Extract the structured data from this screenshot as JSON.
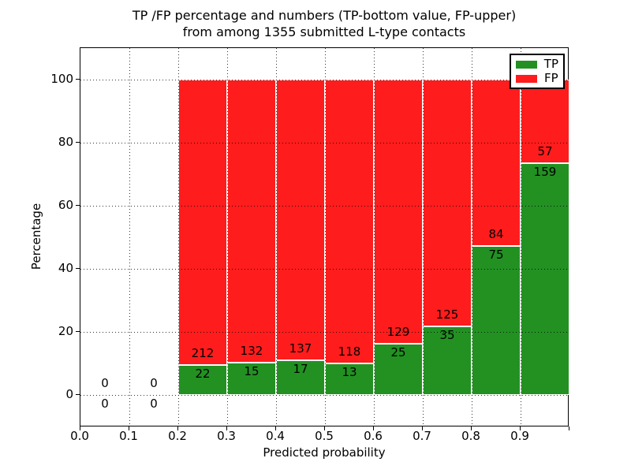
{
  "chart_data": {
    "type": "bar",
    "stacked": true,
    "title_line1": "TP /FP percentage and numbers (TP-bottom value, FP-upper)",
    "title_line2": "from among 1355 submitted L-type contacts",
    "xlabel": "Predicted probability",
    "ylabel": "Percentage",
    "xlim": [
      0.0,
      1.0
    ],
    "ylim": [
      -10,
      110
    ],
    "xticks": [
      "0.0",
      "0.1",
      "0.2",
      "0.3",
      "0.4",
      "0.5",
      "0.6",
      "0.7",
      "0.8",
      "0.9"
    ],
    "yticks": [
      0,
      20,
      40,
      60,
      80,
      100
    ],
    "grid": true,
    "total_submitted": 1355,
    "legend": {
      "position": "upper right",
      "entries": [
        {
          "label": "TP",
          "color": "#229122"
        },
        {
          "label": "FP",
          "color": "#ff1c1c"
        }
      ]
    },
    "bins": [
      {
        "range": [
          0.0,
          0.1
        ],
        "tp": 0,
        "fp": 0
      },
      {
        "range": [
          0.1,
          0.2
        ],
        "tp": 0,
        "fp": 0
      },
      {
        "range": [
          0.2,
          0.3
        ],
        "tp": 22,
        "fp": 212
      },
      {
        "range": [
          0.3,
          0.4
        ],
        "tp": 15,
        "fp": 132
      },
      {
        "range": [
          0.4,
          0.5
        ],
        "tp": 17,
        "fp": 137
      },
      {
        "range": [
          0.5,
          0.6
        ],
        "tp": 13,
        "fp": 118
      },
      {
        "range": [
          0.6,
          0.7
        ],
        "tp": 25,
        "fp": 129
      },
      {
        "range": [
          0.7,
          0.8
        ],
        "tp": 35,
        "fp": 125
      },
      {
        "range": [
          0.8,
          0.9
        ],
        "tp": 75,
        "fp": 84
      },
      {
        "range": [
          0.9,
          1.0
        ],
        "tp": 159,
        "fp": 57
      }
    ]
  }
}
